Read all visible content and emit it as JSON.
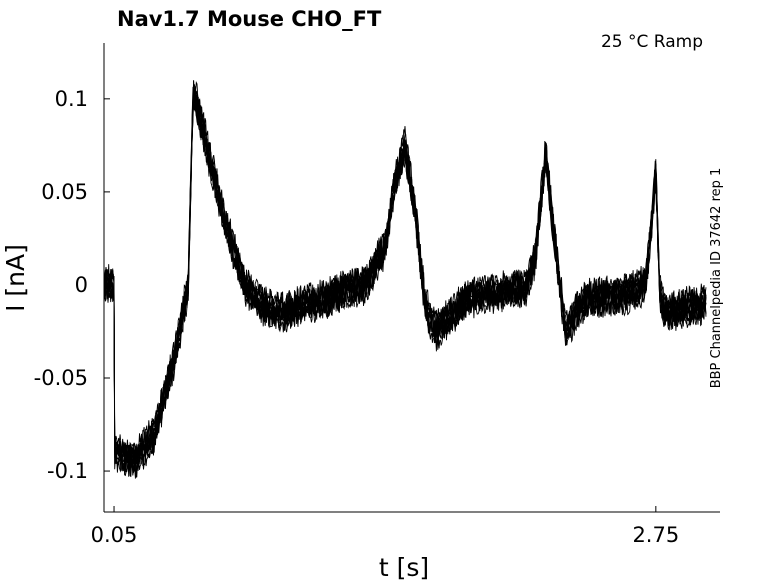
{
  "chart_data": {
    "type": "line",
    "title": "Nav1.7  Mouse  CHO_FT",
    "condition": "25 °C  Ramp",
    "side_label": "BBP Channelpedia ID 37642 rep 1",
    "xlabel": "t [s]",
    "ylabel": "I [nA]",
    "xlim": [
      0.0,
      3.0
    ],
    "ylim": [
      -0.122,
      0.13
    ],
    "x_ticks": [
      {
        "value": 0.05,
        "label": "0.05"
      },
      {
        "value": 2.75,
        "label": "2.75"
      }
    ],
    "y_ticks": [
      {
        "value": 0.1,
        "label": "0.1"
      },
      {
        "value": 0.05,
        "label": "0.05"
      },
      {
        "value": 0,
        "label": "0"
      },
      {
        "value": -0.05,
        "label": "-0.05"
      },
      {
        "value": -0.1,
        "label": "-0.1"
      }
    ],
    "grid": false,
    "line_color": "#000000",
    "repeats": 10,
    "trace_keypoints": {
      "x": [
        0.0,
        0.05,
        0.051,
        0.15,
        0.25,
        0.35,
        0.42,
        0.44,
        0.445,
        0.5,
        0.6,
        0.7,
        0.8,
        0.9,
        1.0,
        1.1,
        1.2,
        1.3,
        1.4,
        1.45,
        1.5,
        1.55,
        1.6,
        1.65,
        1.7,
        1.8,
        1.9,
        2.0,
        2.1,
        2.15,
        2.2,
        2.25,
        2.3,
        2.35,
        2.4,
        2.5,
        2.6,
        2.7,
        2.75,
        2.77,
        2.8,
        2.9,
        3.0
      ],
      "y": [
        0.0,
        0.0,
        -0.09,
        -0.095,
        -0.08,
        -0.04,
        0.0,
        0.085,
        0.105,
        0.08,
        0.035,
        0.0,
        -0.012,
        -0.015,
        -0.01,
        -0.008,
        -0.002,
        0.0,
        0.02,
        0.055,
        0.075,
        0.04,
        -0.01,
        -0.025,
        -0.02,
        -0.008,
        -0.005,
        -0.003,
        -0.002,
        0.015,
        0.07,
        0.02,
        -0.025,
        -0.015,
        -0.008,
        -0.006,
        -0.005,
        0.0,
        0.06,
        -0.005,
        -0.015,
        -0.012,
        -0.01
      ]
    }
  }
}
